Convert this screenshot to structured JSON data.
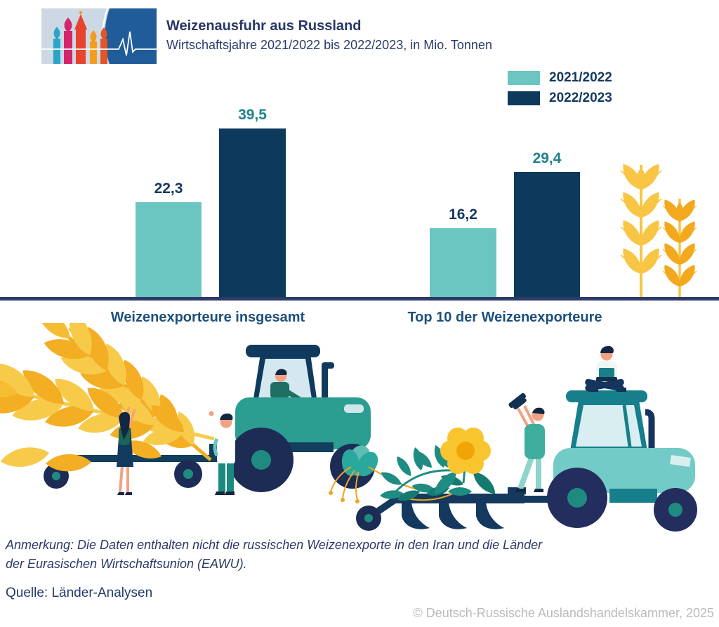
{
  "header": {
    "title": "Weizenausfuhr aus Russland",
    "subtitle": "Wirtschaftsjahre 2021/2022 bis 2022/2023, in Mio. Tonnen",
    "logo": "drahk-logo-st-basils-cathedral-pulse"
  },
  "legend": {
    "items": [
      {
        "label": "2021/2022",
        "color": "#6bc5c1"
      },
      {
        "label": "2022/2023",
        "color": "#0d3a5c"
      }
    ]
  },
  "chart_data": {
    "type": "bar",
    "title": "Weizenausfuhr aus Russland",
    "subtitle": "Wirtschaftsjahre 2021/2022 bis 2022/2023, in Mio. Tonnen",
    "unit": "Mio. Tonnen",
    "categories": [
      "Weizenexporteure insgesamt",
      "Top 10 der Weizenexporteure"
    ],
    "series": [
      {
        "name": "2021/2022",
        "color": "#6bc5c1",
        "values": [
          22.3,
          16.2
        ],
        "value_labels": [
          "22,3",
          "16,2"
        ],
        "value_label_color": "#15395f"
      },
      {
        "name": "2022/2023",
        "color": "#0d3a5c",
        "values": [
          39.5,
          29.4
        ],
        "value_labels": [
          "39,5",
          "29,4"
        ],
        "value_label_color": "#1d828e"
      }
    ],
    "ylim": [
      0,
      45
    ],
    "grid": false,
    "legend_position": "top-right"
  },
  "footer": {
    "note_line1": "Anmerkung: Die Daten enthalten nicht die russischen Weizenexporte in den Iran und die Länder",
    "note_line2": "der Eurasischen Wirtschaftsunion (EAWU).",
    "source": "Quelle: Länder-Analysen",
    "copyright": "© Deutsch-Russische Auslandshandelskammer, 2025"
  }
}
